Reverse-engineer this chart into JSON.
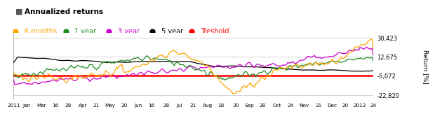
{
  "title": "Annualized returns",
  "legend_items": [
    {
      "label": "6 months",
      "color": "#FFA500"
    },
    {
      "label": "1 year",
      "color": "#228B22"
    },
    {
      "label": "3 year",
      "color": "#CC00CC"
    },
    {
      "label": "5 year",
      "color": "#000000"
    },
    {
      "label": "Treshold",
      "color": "#FF0000"
    }
  ],
  "ylabel": "Return [%]",
  "yticks": [
    30423,
    12675,
    -5072,
    -22820
  ],
  "threshold": -5072,
  "x_labels": [
    "2011",
    "Jan",
    "Mar",
    "16",
    "28",
    "Apr",
    "21",
    "May",
    "20",
    "Jun",
    "16",
    "28",
    "Jul",
    "21",
    "Aug",
    "18",
    "30",
    "Sep",
    "28",
    "Oct",
    "24",
    "Nov",
    "21",
    "Dec",
    "20",
    "2012",
    "24"
  ],
  "background_color": "#ffffff",
  "grid_color": "#cccccc",
  "ylim": [
    -27000,
    35000
  ]
}
